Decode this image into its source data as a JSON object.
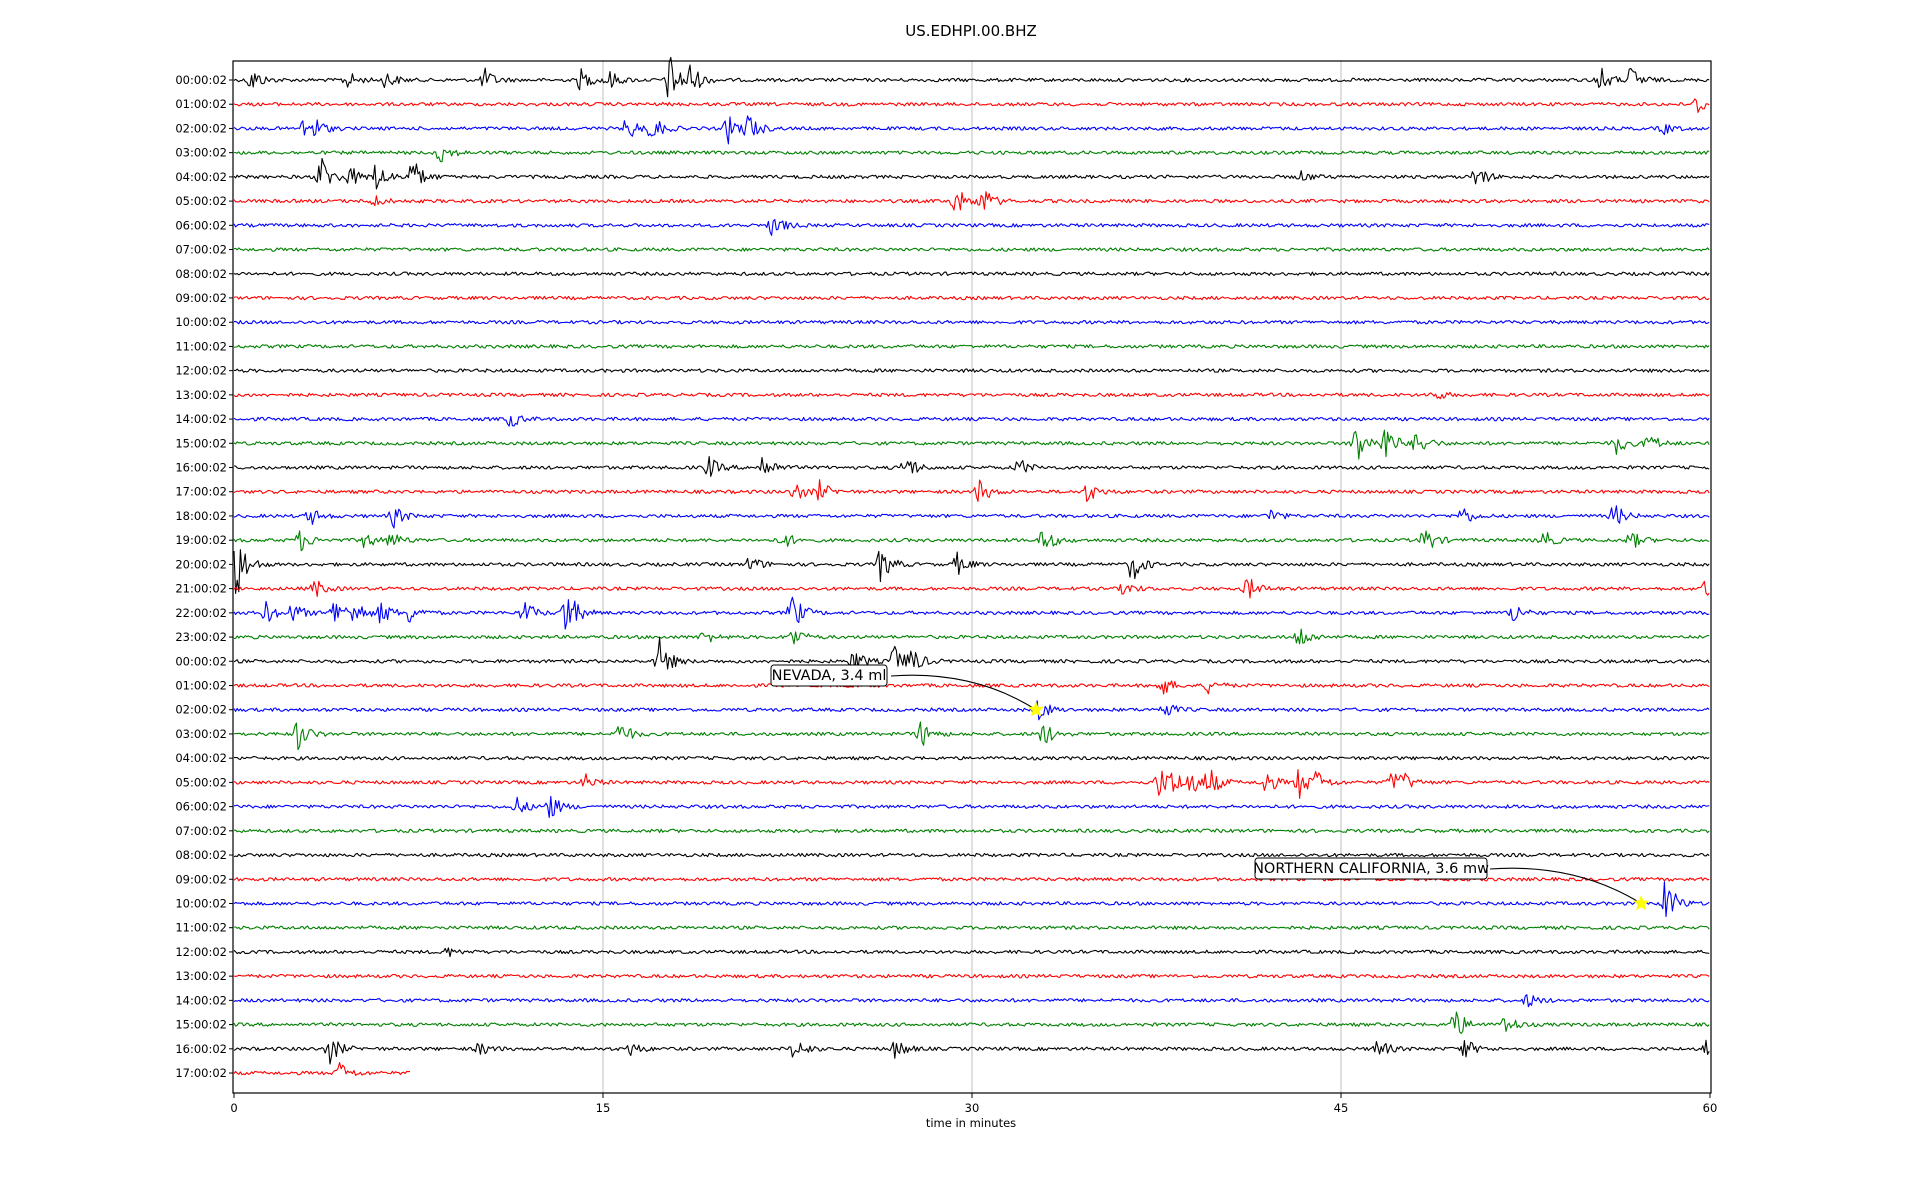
{
  "chart_data": {
    "type": "line",
    "title": "US.EDHPI.00.BHZ",
    "xlabel": "time in minutes",
    "ylabel": "",
    "xlim": [
      0,
      60
    ],
    "xticks": [
      0,
      15,
      30,
      45,
      60
    ],
    "grid": "vertical at x ticks",
    "colors": [
      "#000000",
      "#ff0000",
      "#0000ff",
      "#008000"
    ],
    "rows": [
      {
        "label": "00:00:02",
        "events": [
          {
            "t": 0.7,
            "a": 0.7
          },
          {
            "t": 4.6,
            "a": 0.5
          },
          {
            "t": 6.2,
            "a": 0.5
          },
          {
            "t": 10.2,
            "a": 0.6
          },
          {
            "t": 14.1,
            "a": 0.6
          },
          {
            "t": 15.2,
            "a": 0.6
          },
          {
            "t": 17.7,
            "a": 1.5
          },
          {
            "t": 18.5,
            "a": 1.1
          },
          {
            "t": 55.5,
            "a": 0.8
          },
          {
            "t": 56.8,
            "a": 0.8
          }
        ]
      },
      {
        "label": "01:00:02",
        "events": [
          {
            "t": 59.5,
            "a": 0.6
          }
        ]
      },
      {
        "label": "02:00:02",
        "events": [
          {
            "t": 2.9,
            "a": 0.8
          },
          {
            "t": 3.3,
            "a": 0.6
          },
          {
            "t": 16.0,
            "a": 0.7
          },
          {
            "t": 17.0,
            "a": 0.8
          },
          {
            "t": 20.1,
            "a": 0.8
          },
          {
            "t": 20.9,
            "a": 0.9
          },
          {
            "t": 58.1,
            "a": 0.3
          }
        ]
      },
      {
        "label": "03:00:02",
        "events": [
          {
            "t": 8.4,
            "a": 0.6
          }
        ]
      },
      {
        "label": "04:00:02",
        "events": [
          {
            "t": 3.5,
            "a": 1.3
          },
          {
            "t": 4.7,
            "a": 0.6
          },
          {
            "t": 5.8,
            "a": 0.9
          },
          {
            "t": 7.2,
            "a": 1.2
          },
          {
            "t": 43.4,
            "a": 0.3
          },
          {
            "t": 50.5,
            "a": 0.7
          }
        ]
      },
      {
        "label": "05:00:02",
        "events": [
          {
            "t": 5.6,
            "a": 0.4
          },
          {
            "t": 29.3,
            "a": 0.9
          },
          {
            "t": 30.4,
            "a": 0.9
          }
        ]
      },
      {
        "label": "06:00:02",
        "events": [
          {
            "t": 21.9,
            "a": 0.7
          }
        ]
      },
      {
        "label": "07:00:02",
        "events": []
      },
      {
        "label": "08:00:02",
        "events": []
      },
      {
        "label": "09:00:02",
        "events": []
      },
      {
        "label": "10:00:02",
        "events": []
      },
      {
        "label": "11:00:02",
        "events": []
      },
      {
        "label": "12:00:02",
        "events": []
      },
      {
        "label": "13:00:02",
        "events": [
          {
            "t": 48.8,
            "a": 0.3
          }
        ]
      },
      {
        "label": "14:00:02",
        "events": [
          {
            "t": 11.2,
            "a": 0.5
          }
        ]
      },
      {
        "label": "15:00:02",
        "events": [
          {
            "t": 45.6,
            "a": 1.4
          },
          {
            "t": 46.8,
            "a": 1.1
          },
          {
            "t": 48.1,
            "a": 0.8
          },
          {
            "t": 56.2,
            "a": 0.6
          },
          {
            "t": 57.5,
            "a": 0.6
          }
        ]
      },
      {
        "label": "16:00:02",
        "events": [
          {
            "t": 19.3,
            "a": 0.6
          },
          {
            "t": 21.5,
            "a": 0.8
          },
          {
            "t": 27.3,
            "a": 0.8
          },
          {
            "t": 31.9,
            "a": 0.5
          }
        ]
      },
      {
        "label": "17:00:02",
        "events": [
          {
            "t": 22.8,
            "a": 0.6
          },
          {
            "t": 23.8,
            "a": 0.6
          },
          {
            "t": 30.3,
            "a": 0.7
          },
          {
            "t": 34.7,
            "a": 0.6
          }
        ]
      },
      {
        "label": "18:00:02",
        "events": [
          {
            "t": 3.1,
            "a": 0.5
          },
          {
            "t": 6.5,
            "a": 0.6
          },
          {
            "t": 42.1,
            "a": 0.4
          },
          {
            "t": 49.9,
            "a": 0.6
          },
          {
            "t": 56.1,
            "a": 0.7
          }
        ]
      },
      {
        "label": "19:00:02",
        "events": [
          {
            "t": 2.7,
            "a": 0.6
          },
          {
            "t": 5.3,
            "a": 0.5
          },
          {
            "t": 6.4,
            "a": 0.5
          },
          {
            "t": 22.3,
            "a": 0.5
          },
          {
            "t": 32.9,
            "a": 0.8
          },
          {
            "t": 48.4,
            "a": 0.8
          },
          {
            "t": 53.2,
            "a": 0.6
          },
          {
            "t": 56.8,
            "a": 0.5
          }
        ]
      },
      {
        "label": "20:00:02",
        "events": [
          {
            "t": 0.1,
            "a": 2.0
          },
          {
            "t": 21.0,
            "a": 0.5
          },
          {
            "t": 26.3,
            "a": 1.0
          },
          {
            "t": 29.4,
            "a": 0.6
          },
          {
            "t": 36.5,
            "a": 1.0
          }
        ]
      },
      {
        "label": "21:00:02",
        "events": [
          {
            "t": 3.3,
            "a": 0.5
          },
          {
            "t": 36.2,
            "a": 0.4
          },
          {
            "t": 41.2,
            "a": 0.7
          },
          {
            "t": 59.8,
            "a": 0.6
          }
        ]
      },
      {
        "label": "22:00:02",
        "events": [
          {
            "t": 1.3,
            "a": 0.6
          },
          {
            "t": 2.4,
            "a": 0.6
          },
          {
            "t": 4.1,
            "a": 0.9
          },
          {
            "t": 4.9,
            "a": 0.8
          },
          {
            "t": 6.0,
            "a": 0.7
          },
          {
            "t": 7.1,
            "a": 0.6
          },
          {
            "t": 11.8,
            "a": 0.7
          },
          {
            "t": 13.5,
            "a": 1.6
          },
          {
            "t": 22.7,
            "a": 1.1
          },
          {
            "t": 52.0,
            "a": 0.6
          }
        ]
      },
      {
        "label": "23:00:02",
        "events": [
          {
            "t": 19.1,
            "a": 0.4
          },
          {
            "t": 22.7,
            "a": 0.6
          },
          {
            "t": 43.3,
            "a": 0.7
          }
        ]
      },
      {
        "label": "00:00:02",
        "events": [
          {
            "t": 17.3,
            "a": 1.3
          },
          {
            "t": 25.2,
            "a": 0.7
          },
          {
            "t": 26.8,
            "a": 1.0
          },
          {
            "t": 27.5,
            "a": 0.9
          }
        ]
      },
      {
        "label": "01:00:02",
        "events": [
          {
            "t": 37.7,
            "a": 0.6
          },
          {
            "t": 39.6,
            "a": 0.4
          }
        ]
      },
      {
        "label": "02:00:02",
        "events": [
          {
            "t": 32.7,
            "a": 0.7
          },
          {
            "t": 37.8,
            "a": 0.5
          }
        ]
      },
      {
        "label": "03:00:02",
        "events": [
          {
            "t": 2.6,
            "a": 0.9
          },
          {
            "t": 15.7,
            "a": 0.7
          },
          {
            "t": 27.9,
            "a": 0.8
          },
          {
            "t": 32.9,
            "a": 0.7
          }
        ]
      },
      {
        "label": "04:00:02",
        "events": []
      },
      {
        "label": "05:00:02",
        "events": [
          {
            "t": 14.3,
            "a": 0.4
          },
          {
            "t": 37.6,
            "a": 0.9
          },
          {
            "t": 38.1,
            "a": 0.9
          },
          {
            "t": 38.8,
            "a": 0.9
          },
          {
            "t": 39.6,
            "a": 1.0
          },
          {
            "t": 41.9,
            "a": 0.8
          },
          {
            "t": 43.3,
            "a": 0.9
          },
          {
            "t": 44.0,
            "a": 0.7
          },
          {
            "t": 47.1,
            "a": 0.7
          },
          {
            "t": 47.5,
            "a": 0.6
          }
        ]
      },
      {
        "label": "06:00:02",
        "events": [
          {
            "t": 11.5,
            "a": 0.5
          },
          {
            "t": 12.8,
            "a": 0.8
          }
        ]
      },
      {
        "label": "07:00:02",
        "events": []
      },
      {
        "label": "08:00:02",
        "events": []
      },
      {
        "label": "09:00:02",
        "events": []
      },
      {
        "label": "10:00:02",
        "events": [
          {
            "t": 58.2,
            "a": 1.5
          }
        ]
      },
      {
        "label": "11:00:02",
        "events": []
      },
      {
        "label": "12:00:02",
        "events": [
          {
            "t": 8.6,
            "a": 0.3
          }
        ]
      },
      {
        "label": "13:00:02",
        "events": []
      },
      {
        "label": "14:00:02",
        "events": [
          {
            "t": 52.6,
            "a": 0.4
          }
        ]
      },
      {
        "label": "15:00:02",
        "events": [
          {
            "t": 49.6,
            "a": 1.0
          },
          {
            "t": 51.7,
            "a": 0.6
          }
        ]
      },
      {
        "label": "16:00:02",
        "events": [
          {
            "t": 3.9,
            "a": 0.8
          },
          {
            "t": 10.0,
            "a": 0.4
          },
          {
            "t": 16.1,
            "a": 0.4
          },
          {
            "t": 22.8,
            "a": 0.7
          },
          {
            "t": 26.9,
            "a": 0.6
          },
          {
            "t": 46.5,
            "a": 0.6
          },
          {
            "t": 50.0,
            "a": 0.6
          },
          {
            "t": 59.9,
            "a": 0.7
          }
        ]
      },
      {
        "label": "17:00:02",
        "end": 7.2,
        "events": [
          {
            "t": 4.3,
            "a": 0.6
          }
        ]
      }
    ],
    "annotations": [
      {
        "text": "NEVADA, 3.4 ml",
        "row": 26,
        "t": 32.6
      },
      {
        "text": "NORTHERN CALIFORNIA, 3.6 mw",
        "row": 34,
        "t": 57.2
      }
    ]
  }
}
